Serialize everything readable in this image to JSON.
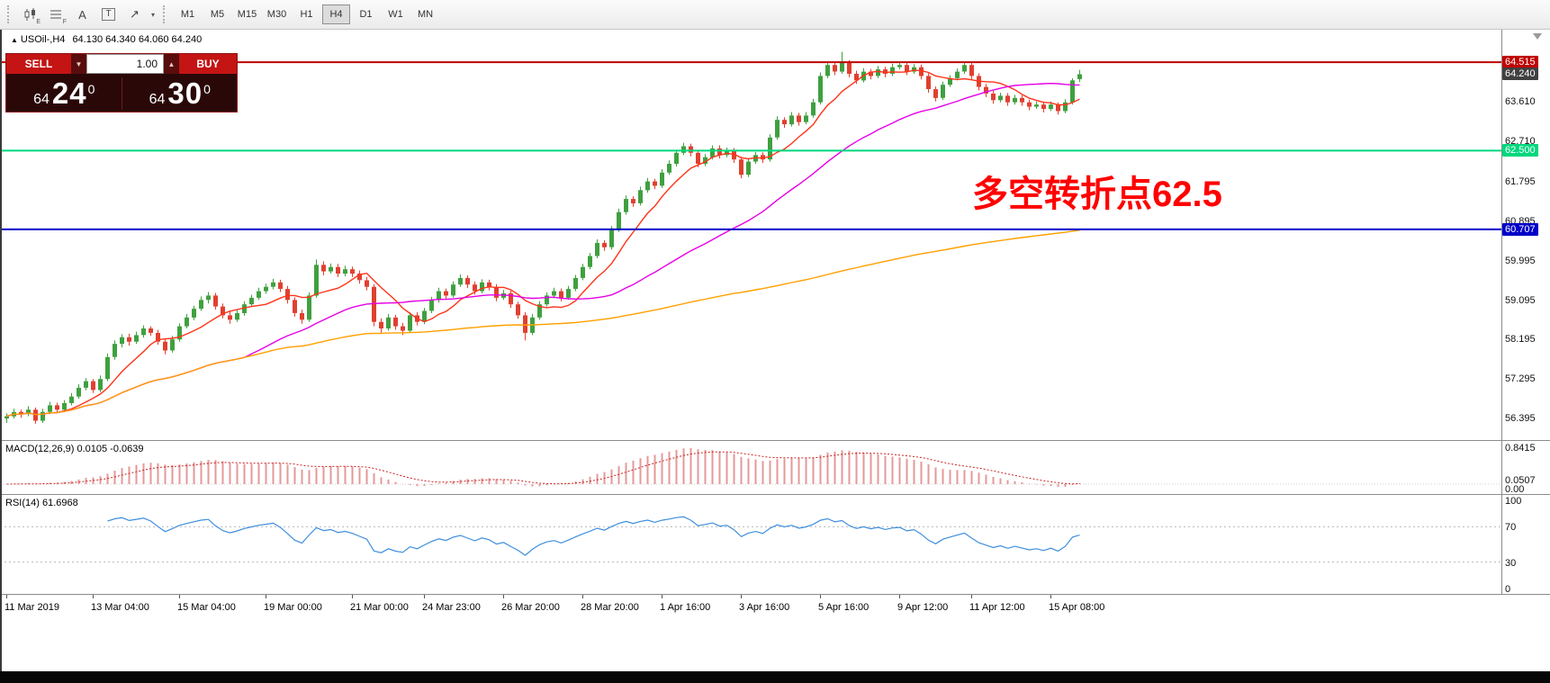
{
  "toolbar": {
    "style_tools": [
      {
        "label": "E",
        "name": "candlestick-style-icon"
      },
      {
        "label": "F",
        "name": "bar-style-icon"
      },
      {
        "label": "A",
        "name": "font-tool-icon"
      },
      {
        "label": "T",
        "name": "text-tool-icon"
      },
      {
        "label": "",
        "name": "cycles-tool-icon"
      }
    ],
    "timeframes": [
      {
        "label": "M1",
        "active": false
      },
      {
        "label": "M5",
        "active": false
      },
      {
        "label": "M15",
        "active": false
      },
      {
        "label": "M30",
        "active": false
      },
      {
        "label": "H1",
        "active": false
      },
      {
        "label": "H4",
        "active": true
      },
      {
        "label": "D1",
        "active": false
      },
      {
        "label": "W1",
        "active": false
      },
      {
        "label": "MN",
        "active": false
      }
    ]
  },
  "chart_header": {
    "marker": "▲",
    "symbol": "USOil-,H4",
    "ohlc": "64.130 64.340 64.060 64.240"
  },
  "trade_panel": {
    "sell_label": "SELL",
    "buy_label": "BUY",
    "volume": "1.00",
    "sell_price": {
      "small": "64",
      "big": "24",
      "sup": "0"
    },
    "buy_price": {
      "small": "64",
      "big": "30",
      "sup": "0"
    }
  },
  "annotation": {
    "text": "多空转折点62.5",
    "color": "#FF0000"
  },
  "macd_pane": {
    "title": "MACD(12,26,9) 0.0105 -0.0639"
  },
  "rsi_pane": {
    "title": "RSI(14) 61.6968"
  },
  "chart_data": {
    "type": "candlestick",
    "symbol": "USOil-",
    "timeframe": "H4",
    "current_ohlc": {
      "open": 64.13,
      "high": 64.34,
      "low": 64.06,
      "close": 64.24
    },
    "ylim": [
      56.0,
      65.25
    ],
    "up_color": "#3FA03F",
    "down_color": "#E04030",
    "price_scale": [
      {
        "text": "64.515",
        "value": 64.515,
        "bg": "#C00000",
        "fg": "#FFFFFF"
      },
      {
        "text": "64.240",
        "value": 64.24,
        "bg": "#404040",
        "fg": "#FFFFFF"
      },
      {
        "text": "63.610",
        "value": 63.61
      },
      {
        "text": "62.710",
        "value": 62.71
      },
      {
        "text": "62.500",
        "value": 62.5,
        "bg": "#00D87E",
        "fg": "#FFFFFF"
      },
      {
        "text": "61.795",
        "value": 61.795
      },
      {
        "text": "60.895",
        "value": 60.895
      },
      {
        "text": "60.707",
        "value": 60.707,
        "bg": "#0000C8",
        "fg": "#FFFFFF"
      },
      {
        "text": "59.995",
        "value": 59.995
      },
      {
        "text": "59.095",
        "value": 59.095
      },
      {
        "text": "58.195",
        "value": 58.195
      },
      {
        "text": "57.295",
        "value": 57.295
      },
      {
        "text": "56.395",
        "value": 56.395
      }
    ],
    "hlines": [
      {
        "value": 64.515,
        "color": "#C00000"
      },
      {
        "value": 62.5,
        "color": "#00D87E"
      },
      {
        "value": 60.707,
        "color": "#0000C8"
      }
    ],
    "moving_averages": [
      {
        "name": "fast",
        "period": 8,
        "color": "#FF3319"
      },
      {
        "name": "medium",
        "period": 34,
        "color": "#E600E6"
      },
      {
        "name": "slow",
        "period": 150,
        "color": "#FFA000"
      }
    ],
    "candles": [
      [
        56.4,
        56.52,
        56.3,
        56.45
      ],
      [
        56.45,
        56.62,
        56.4,
        56.55
      ],
      [
        56.55,
        56.6,
        56.42,
        56.5
      ],
      [
        56.5,
        56.68,
        56.45,
        56.6
      ],
      [
        56.6,
        56.65,
        56.28,
        56.35
      ],
      [
        56.35,
        56.62,
        56.3,
        56.55
      ],
      [
        56.55,
        56.78,
        56.5,
        56.7
      ],
      [
        56.7,
        56.76,
        56.52,
        56.6
      ],
      [
        56.6,
        56.82,
        56.55,
        56.75
      ],
      [
        56.75,
        56.98,
        56.7,
        56.9
      ],
      [
        56.9,
        57.18,
        56.85,
        57.1
      ],
      [
        57.1,
        57.32,
        57.04,
        57.25
      ],
      [
        57.25,
        57.3,
        56.98,
        57.05
      ],
      [
        57.05,
        57.38,
        57.0,
        57.3
      ],
      [
        57.3,
        57.88,
        57.25,
        57.8
      ],
      [
        57.8,
        58.18,
        57.74,
        58.1
      ],
      [
        58.1,
        58.32,
        58.02,
        58.25
      ],
      [
        58.25,
        58.33,
        58.06,
        58.15
      ],
      [
        58.15,
        58.38,
        58.1,
        58.3
      ],
      [
        58.3,
        58.52,
        58.24,
        58.45
      ],
      [
        58.45,
        58.5,
        58.28,
        58.35
      ],
      [
        58.35,
        58.42,
        58.08,
        58.15
      ],
      [
        58.15,
        58.22,
        57.86,
        57.95
      ],
      [
        57.95,
        58.28,
        57.9,
        58.2
      ],
      [
        58.2,
        58.57,
        58.15,
        58.5
      ],
      [
        58.5,
        58.78,
        58.45,
        58.7
      ],
      [
        58.7,
        58.97,
        58.64,
        58.9
      ],
      [
        58.9,
        59.18,
        58.85,
        59.1
      ],
      [
        59.1,
        59.28,
        59.02,
        59.2
      ],
      [
        59.2,
        59.26,
        58.88,
        58.95
      ],
      [
        58.95,
        59.02,
        58.68,
        58.75
      ],
      [
        58.75,
        58.84,
        58.56,
        58.65
      ],
      [
        58.65,
        58.88,
        58.6,
        58.8
      ],
      [
        58.8,
        59.07,
        58.74,
        59.0
      ],
      [
        59.0,
        59.22,
        58.95,
        59.15
      ],
      [
        59.15,
        59.38,
        59.1,
        59.3
      ],
      [
        59.3,
        59.47,
        59.24,
        59.4
      ],
      [
        59.4,
        59.58,
        59.34,
        59.5
      ],
      [
        59.5,
        59.56,
        59.28,
        59.35
      ],
      [
        59.35,
        59.42,
        59.02,
        59.1
      ],
      [
        59.1,
        59.16,
        58.72,
        58.8
      ],
      [
        58.8,
        58.88,
        58.56,
        58.65
      ],
      [
        58.65,
        59.27,
        58.6,
        59.2
      ],
      [
        59.2,
        60.02,
        59.15,
        59.9
      ],
      [
        59.9,
        59.98,
        59.66,
        59.75
      ],
      [
        59.75,
        59.93,
        59.7,
        59.85
      ],
      [
        59.85,
        59.92,
        59.62,
        59.7
      ],
      [
        59.7,
        59.88,
        59.64,
        59.8
      ],
      [
        59.8,
        59.86,
        59.62,
        59.7
      ],
      [
        59.7,
        59.77,
        59.47,
        59.55
      ],
      [
        59.55,
        59.62,
        59.32,
        59.4
      ],
      [
        59.4,
        59.46,
        58.5,
        58.6
      ],
      [
        58.6,
        58.68,
        58.35,
        58.45
      ],
      [
        58.45,
        58.78,
        58.4,
        58.7
      ],
      [
        58.7,
        58.76,
        58.42,
        58.5
      ],
      [
        58.5,
        58.58,
        58.3,
        58.4
      ],
      [
        58.4,
        58.82,
        58.35,
        58.75
      ],
      [
        58.75,
        58.82,
        58.52,
        58.6
      ],
      [
        58.6,
        58.92,
        58.55,
        58.85
      ],
      [
        58.85,
        59.17,
        58.8,
        59.1
      ],
      [
        59.1,
        59.38,
        59.04,
        59.3
      ],
      [
        59.3,
        59.36,
        59.12,
        59.2
      ],
      [
        59.2,
        59.52,
        59.15,
        59.45
      ],
      [
        59.45,
        59.68,
        59.4,
        59.6
      ],
      [
        59.6,
        59.66,
        59.37,
        59.45
      ],
      [
        59.45,
        59.52,
        59.22,
        59.3
      ],
      [
        59.3,
        59.57,
        59.25,
        59.5
      ],
      [
        59.5,
        59.56,
        59.32,
        59.4
      ],
      [
        59.4,
        59.46,
        59.07,
        59.15
      ],
      [
        59.15,
        59.33,
        59.1,
        59.25
      ],
      [
        59.25,
        59.31,
        58.92,
        59.0
      ],
      [
        59.0,
        59.06,
        58.67,
        58.75
      ],
      [
        58.75,
        58.82,
        58.18,
        58.35
      ],
      [
        58.35,
        58.78,
        58.3,
        58.7
      ],
      [
        58.7,
        59.07,
        58.65,
        59.0
      ],
      [
        59.0,
        59.27,
        58.95,
        59.2
      ],
      [
        59.2,
        59.38,
        59.14,
        59.3
      ],
      [
        59.3,
        59.36,
        59.07,
        59.15
      ],
      [
        59.15,
        59.42,
        59.1,
        59.35
      ],
      [
        59.35,
        59.67,
        59.3,
        59.6
      ],
      [
        59.6,
        59.92,
        59.55,
        59.85
      ],
      [
        59.85,
        60.17,
        59.8,
        60.1
      ],
      [
        60.1,
        60.48,
        60.05,
        60.4
      ],
      [
        60.4,
        60.46,
        60.22,
        60.3
      ],
      [
        60.3,
        60.78,
        60.25,
        60.7
      ],
      [
        60.7,
        61.18,
        60.65,
        61.1
      ],
      [
        61.1,
        61.48,
        61.04,
        61.4
      ],
      [
        61.4,
        61.46,
        61.22,
        61.3
      ],
      [
        61.3,
        61.68,
        61.25,
        61.6
      ],
      [
        61.6,
        61.88,
        61.54,
        61.8
      ],
      [
        61.8,
        61.86,
        61.62,
        61.7
      ],
      [
        61.7,
        62.08,
        61.65,
        62.0
      ],
      [
        62.0,
        62.28,
        61.95,
        62.2
      ],
      [
        62.2,
        62.52,
        62.14,
        62.45
      ],
      [
        62.45,
        62.68,
        62.4,
        62.6
      ],
      [
        62.6,
        62.66,
        62.37,
        62.45
      ],
      [
        62.45,
        62.52,
        62.12,
        62.2
      ],
      [
        62.2,
        62.42,
        62.15,
        62.35
      ],
      [
        62.35,
        62.62,
        62.3,
        62.55
      ],
      [
        62.55,
        62.62,
        62.32,
        62.4
      ],
      [
        62.4,
        62.57,
        62.35,
        62.5
      ],
      [
        62.5,
        62.56,
        62.22,
        62.3
      ],
      [
        62.3,
        62.36,
        61.87,
        61.95
      ],
      [
        61.95,
        62.32,
        61.9,
        62.25
      ],
      [
        62.25,
        62.47,
        62.2,
        62.4
      ],
      [
        62.4,
        62.46,
        62.22,
        62.3
      ],
      [
        62.3,
        62.87,
        62.25,
        62.8
      ],
      [
        62.8,
        63.28,
        62.75,
        63.2
      ],
      [
        63.2,
        63.26,
        63.02,
        63.1
      ],
      [
        63.1,
        63.38,
        63.05,
        63.3
      ],
      [
        63.3,
        63.36,
        63.07,
        63.15
      ],
      [
        63.15,
        63.38,
        63.1,
        63.3
      ],
      [
        63.3,
        63.68,
        63.25,
        63.6
      ],
      [
        63.6,
        64.28,
        63.55,
        64.2
      ],
      [
        64.2,
        64.53,
        64.15,
        64.45
      ],
      [
        64.45,
        64.52,
        64.22,
        64.3
      ],
      [
        64.3,
        64.75,
        64.25,
        64.5
      ],
      [
        64.5,
        64.56,
        64.17,
        64.25
      ],
      [
        64.25,
        64.32,
        64.02,
        64.1
      ],
      [
        64.1,
        64.38,
        64.05,
        64.3
      ],
      [
        64.3,
        64.36,
        64.12,
        64.2
      ],
      [
        64.2,
        64.43,
        64.15,
        64.35
      ],
      [
        64.35,
        64.41,
        64.17,
        64.25
      ],
      [
        64.25,
        64.48,
        64.2,
        64.4
      ],
      [
        64.4,
        64.52,
        64.35,
        64.45
      ],
      [
        64.45,
        64.51,
        64.22,
        64.3
      ],
      [
        64.3,
        64.47,
        64.25,
        64.4
      ],
      [
        64.4,
        64.46,
        64.12,
        64.2
      ],
      [
        64.2,
        64.26,
        63.82,
        63.9
      ],
      [
        63.9,
        63.96,
        63.62,
        63.7
      ],
      [
        63.7,
        64.07,
        63.65,
        64.0
      ],
      [
        64.0,
        64.22,
        63.95,
        64.15
      ],
      [
        64.15,
        64.37,
        64.1,
        64.3
      ],
      [
        64.3,
        64.52,
        64.25,
        64.45
      ],
      [
        64.45,
        64.51,
        64.12,
        64.2
      ],
      [
        64.2,
        64.26,
        63.87,
        63.95
      ],
      [
        63.95,
        64.02,
        63.72,
        63.8
      ],
      [
        63.8,
        63.86,
        63.57,
        63.65
      ],
      [
        63.65,
        63.82,
        63.6,
        63.75
      ],
      [
        63.75,
        63.81,
        63.52,
        63.6
      ],
      [
        63.6,
        63.77,
        63.55,
        63.7
      ],
      [
        63.7,
        63.76,
        63.52,
        63.6
      ],
      [
        63.6,
        63.66,
        63.42,
        63.5
      ],
      [
        63.5,
        63.62,
        63.45,
        63.55
      ],
      [
        63.55,
        63.6,
        63.37,
        63.45
      ],
      [
        63.45,
        63.62,
        63.4,
        63.55
      ],
      [
        63.55,
        63.6,
        63.32,
        63.4
      ],
      [
        63.4,
        63.67,
        63.35,
        63.6
      ],
      [
        63.6,
        64.15,
        63.55,
        64.1
      ],
      [
        64.13,
        64.34,
        64.06,
        64.24
      ]
    ],
    "time_labels": [
      {
        "text": "11 Mar 2019",
        "index": 0
      },
      {
        "text": "13 Mar 04:00",
        "index": 12
      },
      {
        "text": "15 Mar 04:00",
        "index": 24
      },
      {
        "text": "19 Mar 00:00",
        "index": 36
      },
      {
        "text": "21 Mar 00:00",
        "index": 48
      },
      {
        "text": "24 Mar 23:00",
        "index": 58
      },
      {
        "text": "26 Mar 20:00",
        "index": 69
      },
      {
        "text": "28 Mar 20:00",
        "index": 80
      },
      {
        "text": "1 Apr 16:00",
        "index": 91
      },
      {
        "text": "3 Apr 16:00",
        "index": 102
      },
      {
        "text": "5 Apr 16:00",
        "index": 113
      },
      {
        "text": "9 Apr 12:00",
        "index": 124
      },
      {
        "text": "11 Apr 12:00",
        "index": 134
      },
      {
        "text": "15 Apr 08:00",
        "index": 145
      }
    ],
    "macd": {
      "params": [
        12,
        26,
        9
      ],
      "value": 0.0105,
      "signal": -0.0639,
      "hist_color": "#E59898",
      "signal_color": "#CC2222",
      "scale": [
        {
          "text": "0.8415",
          "value": 0.8415
        },
        {
          "text": "0.0507",
          "value": 0.0507
        },
        {
          "text": "0.00",
          "value": 0.0
        }
      ]
    },
    "rsi": {
      "period": 14,
      "value": 61.6968,
      "line_color": "#3E8EDE",
      "levels": [
        70,
        30
      ],
      "scale": [
        {
          "text": "100",
          "value": 100
        },
        {
          "text": "70",
          "value": 70
        },
        {
          "text": "30",
          "value": 30
        },
        {
          "text": "0",
          "value": 0
        }
      ]
    }
  }
}
